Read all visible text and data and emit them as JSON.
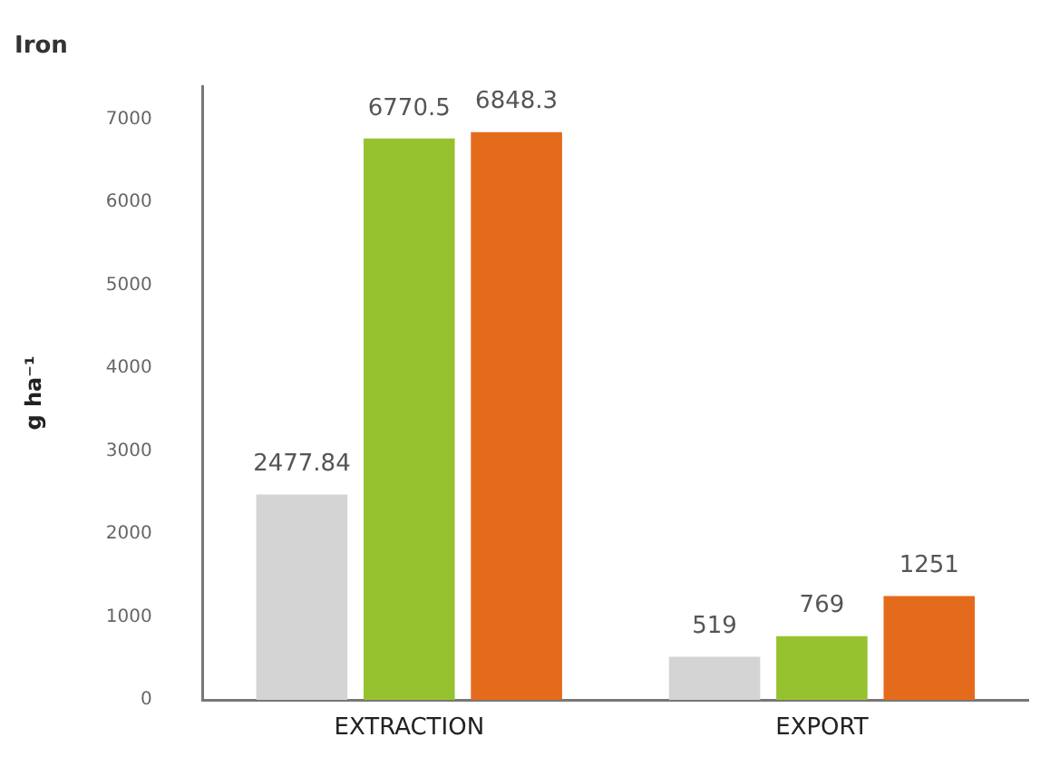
{
  "chart_data": {
    "type": "bar",
    "title": "Iron",
    "ylabel": "g ha⁻¹",
    "categories": [
      "EXTRACTION",
      "EXPORT"
    ],
    "series": [
      {
        "color": "#d4d4d4",
        "values": [
          2477.84,
          519
        ]
      },
      {
        "color": "#97c22f",
        "values": [
          6770.5,
          769
        ]
      },
      {
        "color": "#e46b1c",
        "values": [
          6848.3,
          1251
        ]
      }
    ],
    "ylim": [
      0,
      7400
    ],
    "yticks": [
      0,
      1000,
      2000,
      3000,
      4000,
      5000,
      6000,
      7000
    ],
    "grid": false,
    "legend": false,
    "data_labels": true
  }
}
